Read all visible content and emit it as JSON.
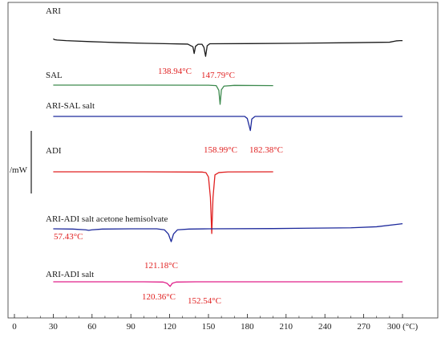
{
  "chart_data": {
    "type": "line",
    "title": "",
    "xlabel": "(°C)",
    "ylabel": "/mW",
    "xlim": [
      0,
      300
    ],
    "x_ticks": [
      0,
      30,
      60,
      90,
      120,
      150,
      180,
      210,
      240,
      270,
      300
    ],
    "grid": false,
    "series": [
      {
        "name": "ARI",
        "color": "#1a1a1a",
        "points": [
          [
            30,
            0.5
          ],
          [
            31,
            0.2
          ],
          [
            33,
            0.05
          ],
          [
            40,
            -0.2
          ],
          [
            60,
            -0.6
          ],
          [
            80,
            -0.95
          ],
          [
            100,
            -1.2
          ],
          [
            120,
            -1.4
          ],
          [
            130,
            -1.5
          ],
          [
            134,
            -1.55
          ],
          [
            138,
            -2.6
          ],
          [
            138.94,
            -5.2
          ],
          [
            140,
            -2.4
          ],
          [
            142,
            -1.6
          ],
          [
            145,
            -1.6
          ],
          [
            146.5,
            -2.8
          ],
          [
            147.79,
            -6.3
          ],
          [
            149,
            -2.2
          ],
          [
            151,
            -1.4
          ],
          [
            180,
            -1.35
          ],
          [
            220,
            -1.2
          ],
          [
            260,
            -1.0
          ],
          [
            290,
            -0.8
          ],
          [
            295,
            -0.3
          ],
          [
            298,
            -0.2
          ],
          [
            300,
            -0.2
          ]
        ]
      },
      {
        "name": "SAL",
        "color": "#3d8a4e",
        "points": [
          [
            30,
            0.0
          ],
          [
            100,
            0.0
          ],
          [
            150,
            -0.05
          ],
          [
            156,
            -0.2
          ],
          [
            158,
            -2.0
          ],
          [
            158.99,
            -7.5
          ],
          [
            160,
            -1.8
          ],
          [
            162,
            -0.4
          ],
          [
            170,
            -0.1
          ],
          [
            200,
            -0.2
          ]
        ]
      },
      {
        "name": "ARI-SAL salt",
        "color": "#1e2a9c",
        "points": [
          [
            30,
            0.0
          ],
          [
            100,
            0.0
          ],
          [
            150,
            0.0
          ],
          [
            178,
            0.0
          ],
          [
            180,
            -0.8
          ],
          [
            182.38,
            -5.5
          ],
          [
            183.5,
            -1.0
          ],
          [
            186,
            0.0
          ],
          [
            220,
            0.0
          ],
          [
            300,
            0.0
          ]
        ]
      },
      {
        "name": "ADI",
        "color": "#e02020",
        "points": [
          [
            30,
            0.0
          ],
          [
            100,
            0.0
          ],
          [
            145,
            -0.1
          ],
          [
            148,
            -0.3
          ],
          [
            150,
            -2.0
          ],
          [
            151.5,
            -10.0
          ],
          [
            152.54,
            -24.0
          ],
          [
            153.5,
            -10.0
          ],
          [
            155,
            -1.2
          ],
          [
            158,
            -0.3
          ],
          [
            165,
            -0.05
          ],
          [
            200,
            0.0
          ]
        ]
      },
      {
        "name": "ARI-ADI salt acetone hemisolvate",
        "color": "#1e2a9c",
        "points": [
          [
            30,
            0.0
          ],
          [
            45,
            -0.1
          ],
          [
            55,
            -0.4
          ],
          [
            57.43,
            -0.6
          ],
          [
            60,
            -0.4
          ],
          [
            68,
            -0.1
          ],
          [
            90,
            0.0
          ],
          [
            110,
            0.0
          ],
          [
            116,
            -0.4
          ],
          [
            119,
            -2.0
          ],
          [
            121.18,
            -5.0
          ],
          [
            123,
            -2.0
          ],
          [
            126,
            -0.4
          ],
          [
            135,
            -0.1
          ],
          [
            150,
            0.0
          ],
          [
            200,
            0.1
          ],
          [
            260,
            0.4
          ],
          [
            280,
            0.8
          ],
          [
            300,
            2.0
          ]
        ]
      },
      {
        "name": "ARI-ADI salt",
        "color": "#e0208a",
        "points": [
          [
            30,
            0.0
          ],
          [
            100,
            0.0
          ],
          [
            115,
            -0.1
          ],
          [
            118,
            -0.6
          ],
          [
            120.36,
            -1.8
          ],
          [
            122,
            -0.6
          ],
          [
            125,
            -0.1
          ],
          [
            140,
            0.0
          ],
          [
            300,
            0.0
          ]
        ]
      }
    ],
    "annotations": [
      {
        "text": "138.94°C",
        "series": "ARI"
      },
      {
        "text": "147.79°C",
        "series": "ARI"
      },
      {
        "text": "158.99°C",
        "series": "SAL"
      },
      {
        "text": "182.38°C",
        "series": "ARI-SAL salt"
      },
      {
        "text": "57.43°C",
        "series": "ARI-ADI salt acetone hemisolvate"
      },
      {
        "text": "121.18°C",
        "series": "ARI-ADI salt acetone hemisolvate"
      },
      {
        "text": "120.36°C",
        "series": "ARI-ADI salt"
      },
      {
        "text": "152.54°C",
        "series": "ADI"
      }
    ],
    "annotation_color": "#e02020"
  }
}
